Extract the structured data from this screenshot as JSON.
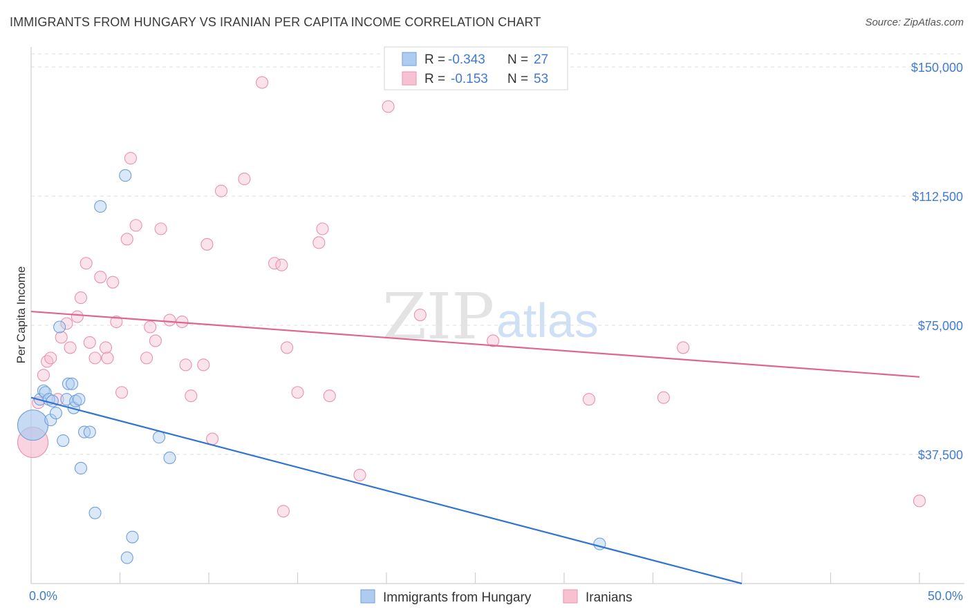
{
  "title": "IMMIGRANTS FROM HUNGARY VS IRANIAN PER CAPITA INCOME CORRELATION CHART",
  "source": "Source: ZipAtlas.com",
  "watermark": {
    "zip": "ZIP",
    "atlas": "atlas"
  },
  "colors": {
    "blue_fill": "#aecbf0",
    "blue_stroke": "#6f9fdc",
    "blue_line": "#2f74d0",
    "pink_fill": "#f7c1d2",
    "pink_stroke": "#e892ad",
    "pink_line": "#e0658e",
    "tick_text": "#3f7bd0",
    "grid": "#dddddd"
  },
  "legend": {
    "series1": {
      "r_label": "R =",
      "r_value": "-0.343",
      "n_label": "N =",
      "n_value": "27"
    },
    "series2": {
      "r_label": "R =",
      "r_value": "-0.153",
      "n_label": "N =",
      "n_value": "53"
    }
  },
  "chart_data": {
    "type": "scatter",
    "title": "IMMIGRANTS FROM HUNGARY VS IRANIAN PER CAPITA INCOME CORRELATION CHART",
    "xlabel": "",
    "ylabel": "Per Capita Income",
    "xlim": [
      0,
      50
    ],
    "ylim": [
      0,
      157500
    ],
    "x_tick_labels": [
      "0.0%",
      "50.0%"
    ],
    "y_ticks": [
      37500,
      75000,
      112500,
      150000
    ],
    "y_tick_labels": [
      "$37,500",
      "$75,000",
      "$112,500",
      "$150,000"
    ],
    "grid": true,
    "series": [
      {
        "name": "Immigrants from Hungary",
        "color": "blue",
        "r": -0.343,
        "n": 27,
        "trend": {
          "x": [
            0,
            40
          ],
          "y": [
            54000,
            0
          ]
        },
        "points": [
          {
            "x": 0.1,
            "y": 46000,
            "big": true
          },
          {
            "x": 0.5,
            "y": 53500
          },
          {
            "x": 0.7,
            "y": 56000
          },
          {
            "x": 0.8,
            "y": 55500
          },
          {
            "x": 1.0,
            "y": 53500
          },
          {
            "x": 1.1,
            "y": 47500
          },
          {
            "x": 1.2,
            "y": 53000
          },
          {
            "x": 1.4,
            "y": 49500
          },
          {
            "x": 1.6,
            "y": 74500
          },
          {
            "x": 1.8,
            "y": 41500
          },
          {
            "x": 2.0,
            "y": 53500
          },
          {
            "x": 2.1,
            "y": 58000
          },
          {
            "x": 2.3,
            "y": 58000
          },
          {
            "x": 2.4,
            "y": 51000
          },
          {
            "x": 2.5,
            "y": 53000
          },
          {
            "x": 2.7,
            "y": 53500
          },
          {
            "x": 2.8,
            "y": 33500
          },
          {
            "x": 3.0,
            "y": 44000
          },
          {
            "x": 3.3,
            "y": 44000
          },
          {
            "x": 3.6,
            "y": 20500
          },
          {
            "x": 3.9,
            "y": 109500
          },
          {
            "x": 5.3,
            "y": 118500
          },
          {
            "x": 5.4,
            "y": 7500
          },
          {
            "x": 5.7,
            "y": 13500
          },
          {
            "x": 7.2,
            "y": 42500
          },
          {
            "x": 7.8,
            "y": 36500
          },
          {
            "x": 32.0,
            "y": 11500
          }
        ]
      },
      {
        "name": "Iranians",
        "color": "pink",
        "r": -0.153,
        "n": 53,
        "trend": {
          "x": [
            0,
            50
          ],
          "y": [
            79000,
            60000
          ]
        },
        "points": [
          {
            "x": 0.1,
            "y": 41000,
            "big": true
          },
          {
            "x": 0.4,
            "y": 52500
          },
          {
            "x": 0.7,
            "y": 60500
          },
          {
            "x": 0.9,
            "y": 64500
          },
          {
            "x": 1.1,
            "y": 65500
          },
          {
            "x": 1.5,
            "y": 53500
          },
          {
            "x": 1.7,
            "y": 71500
          },
          {
            "x": 2.0,
            "y": 75500
          },
          {
            "x": 2.2,
            "y": 68500
          },
          {
            "x": 2.6,
            "y": 77500
          },
          {
            "x": 2.8,
            "y": 83000
          },
          {
            "x": 3.1,
            "y": 93000
          },
          {
            "x": 3.3,
            "y": 70000
          },
          {
            "x": 3.6,
            "y": 65500
          },
          {
            "x": 3.9,
            "y": 89000
          },
          {
            "x": 4.2,
            "y": 68500
          },
          {
            "x": 4.3,
            "y": 65500
          },
          {
            "x": 4.6,
            "y": 87500
          },
          {
            "x": 4.8,
            "y": 76000
          },
          {
            "x": 5.1,
            "y": 55500
          },
          {
            "x": 5.4,
            "y": 100000
          },
          {
            "x": 5.6,
            "y": 123500
          },
          {
            "x": 5.9,
            "y": 104000
          },
          {
            "x": 6.5,
            "y": 65500
          },
          {
            "x": 6.7,
            "y": 74500
          },
          {
            "x": 7.0,
            "y": 70500
          },
          {
            "x": 7.3,
            "y": 103000
          },
          {
            "x": 7.8,
            "y": 76500
          },
          {
            "x": 8.5,
            "y": 76000
          },
          {
            "x": 8.7,
            "y": 63500
          },
          {
            "x": 9.0,
            "y": 54500
          },
          {
            "x": 9.7,
            "y": 63500
          },
          {
            "x": 9.9,
            "y": 98500
          },
          {
            "x": 10.2,
            "y": 42000
          },
          {
            "x": 10.7,
            "y": 114000
          },
          {
            "x": 12.0,
            "y": 117500
          },
          {
            "x": 13.0,
            "y": 145500
          },
          {
            "x": 13.7,
            "y": 93000
          },
          {
            "x": 14.1,
            "y": 92500
          },
          {
            "x": 14.2,
            "y": 21000
          },
          {
            "x": 14.4,
            "y": 68500
          },
          {
            "x": 15.0,
            "y": 55500
          },
          {
            "x": 16.2,
            "y": 99000
          },
          {
            "x": 16.4,
            "y": 103000
          },
          {
            "x": 16.8,
            "y": 54500
          },
          {
            "x": 18.5,
            "y": 31500
          },
          {
            "x": 20.1,
            "y": 138500
          },
          {
            "x": 21.9,
            "y": 78000
          },
          {
            "x": 26.0,
            "y": 70500
          },
          {
            "x": 31.4,
            "y": 53500
          },
          {
            "x": 35.6,
            "y": 54000
          },
          {
            "x": 36.7,
            "y": 68500
          },
          {
            "x": 50.0,
            "y": 24000
          }
        ]
      }
    ]
  }
}
